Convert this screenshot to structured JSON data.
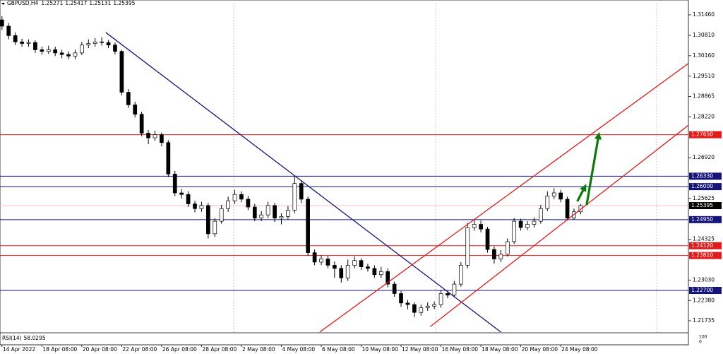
{
  "chart_data": {
    "type": "candlestick",
    "title": "GBPUSD,H4",
    "ohlc": [
      1.25271,
      1.25417,
      1.25131,
      1.25395
    ],
    "open": [
      1.313,
      1.311,
      1.308,
      1.306,
      1.3055,
      1.3058,
      1.3035,
      1.303,
      1.3035,
      1.3025,
      1.302,
      1.3015,
      1.3025,
      1.305,
      1.3055,
      1.306,
      1.3058,
      1.305,
      1.303,
      1.29,
      1.286,
      1.283,
      1.277,
      1.2755,
      1.2765,
      1.274,
      1.264,
      1.258,
      1.2575,
      1.2545,
      1.253,
      1.254,
      1.245,
      1.249,
      1.253,
      1.2555,
      1.2575,
      1.256,
      1.2535,
      1.25,
      1.251,
      1.254,
      1.25,
      1.2505,
      1.2525,
      1.261,
      1.256,
      1.239,
      1.236,
      1.237,
      1.235,
      1.234,
      1.231,
      1.235,
      1.2365,
      1.2345,
      1.234,
      1.232,
      1.233,
      1.229,
      1.226,
      1.223,
      1.2225,
      1.22,
      1.2215,
      1.222,
      1.2225,
      1.226,
      1.2255,
      1.229,
      1.235,
      1.247,
      1.248,
      1.2465,
      1.24,
      1.237,
      1.2385,
      1.2425,
      1.249,
      1.247,
      1.248,
      1.249,
      1.253,
      1.257,
      1.258,
      1.256,
      1.25,
      1.252
    ],
    "high": [
      1.3142,
      1.312,
      1.309,
      1.307,
      1.3068,
      1.3065,
      1.3045,
      1.3048,
      1.3045,
      1.3035,
      1.303,
      1.3035,
      1.306,
      1.3068,
      1.3072,
      1.3075,
      1.3066,
      1.3058,
      1.3035,
      1.291,
      1.287,
      1.2838,
      1.278,
      1.2778,
      1.2772,
      1.2748,
      1.265,
      1.2592,
      1.2585,
      1.2555,
      1.2552,
      1.2548,
      1.25,
      1.2542,
      1.2568,
      1.259,
      1.2585,
      1.257,
      1.2545,
      1.2522,
      1.2552,
      1.2548,
      1.2515,
      1.2538,
      1.2635,
      1.262,
      1.2568,
      1.24,
      1.2382,
      1.238,
      1.2362,
      1.235,
      1.2368,
      1.2378,
      1.2372,
      1.2355,
      1.235,
      1.2345,
      1.234,
      1.2298,
      1.2268,
      1.224,
      1.2232,
      1.2225,
      1.2232,
      1.2235,
      1.2272,
      1.2268,
      1.23,
      1.236,
      1.2485,
      1.2495,
      1.2492,
      1.2472,
      1.241,
      1.2398,
      1.2435,
      1.25,
      1.2498,
      1.249,
      1.2502,
      1.2542,
      1.2585,
      1.2595,
      1.259,
      1.2568,
      1.253,
      1.2545
    ],
    "low": [
      1.3098,
      1.3068,
      1.305,
      1.3045,
      1.3045,
      1.3025,
      1.302,
      1.3022,
      1.3015,
      1.3008,
      1.3005,
      1.3005,
      1.3018,
      1.304,
      1.3045,
      1.3048,
      1.304,
      1.302,
      1.289,
      1.285,
      1.282,
      1.276,
      1.2735,
      1.2745,
      1.2728,
      1.263,
      1.257,
      1.2562,
      1.2535,
      1.2518,
      1.252,
      1.2435,
      1.244,
      1.2482,
      1.252,
      1.2545,
      1.255,
      1.2525,
      1.249,
      1.249,
      1.25,
      1.2488,
      1.248,
      1.2495,
      1.2515,
      1.2548,
      1.238,
      1.235,
      1.235,
      1.234,
      1.231,
      1.2295,
      1.23,
      1.234,
      1.2335,
      1.233,
      1.231,
      1.231,
      1.228,
      1.225,
      1.2218,
      1.221,
      1.2185,
      1.219,
      1.2205,
      1.221,
      1.2215,
      1.2245,
      1.2248,
      1.2282,
      1.234,
      1.246,
      1.2455,
      1.239,
      1.2355,
      1.236,
      1.2378,
      1.2418,
      1.246,
      1.2462,
      1.247,
      1.2482,
      1.2522,
      1.256,
      1.255,
      1.2492,
      1.2495,
      1.2512
    ],
    "close": [
      1.311,
      1.308,
      1.306,
      1.3055,
      1.3058,
      1.3035,
      1.303,
      1.3035,
      1.3025,
      1.302,
      1.3015,
      1.3025,
      1.305,
      1.3055,
      1.306,
      1.3058,
      1.305,
      1.303,
      1.29,
      1.286,
      1.283,
      1.277,
      1.2755,
      1.2765,
      1.274,
      1.264,
      1.258,
      1.2575,
      1.2545,
      1.253,
      1.254,
      1.245,
      1.249,
      1.253,
      1.2555,
      1.2575,
      1.256,
      1.2535,
      1.25,
      1.251,
      1.254,
      1.25,
      1.2505,
      1.2525,
      1.261,
      1.256,
      1.239,
      1.236,
      1.237,
      1.235,
      1.234,
      1.231,
      1.235,
      1.2365,
      1.2345,
      1.234,
      1.232,
      1.233,
      1.229,
      1.226,
      1.223,
      1.2225,
      1.22,
      1.2215,
      1.222,
      1.2225,
      1.226,
      1.2255,
      1.229,
      1.235,
      1.247,
      1.248,
      1.2465,
      1.24,
      1.237,
      1.2385,
      1.2425,
      1.249,
      1.247,
      1.248,
      1.249,
      1.253,
      1.257,
      1.258,
      1.256,
      1.25,
      1.252,
      1.25395
    ],
    "xlim": [
      -0.3,
      103.2
    ],
    "ylim": [
      1.21375,
      1.31932
    ],
    "xticks": [
      {
        "value": 0,
        "label": "14 Apr 2022"
      },
      {
        "value": 6,
        "label": "18 Apr 08:00"
      },
      {
        "value": 12,
        "label": "20 Apr 08:00"
      },
      {
        "value": 18,
        "label": "22 Apr 08:00"
      },
      {
        "value": 24,
        "label": "26 Apr 08:00"
      },
      {
        "value": 30,
        "label": "28 Apr 08:00"
      },
      {
        "value": 36,
        "label": "2 May 08:00"
      },
      {
        "value": 42,
        "label": "4 May 08:00"
      },
      {
        "value": 48,
        "label": "6 May 08:00"
      },
      {
        "value": 54,
        "label": "10 May 08:00"
      },
      {
        "value": 60,
        "label": "12 May 08:00"
      },
      {
        "value": 66,
        "label": "16 May 08:00"
      },
      {
        "value": 72,
        "label": "18 May 08:00"
      },
      {
        "value": 78,
        "label": "20 May 08:00"
      },
      {
        "value": 84,
        "label": "24 May 08:00"
      }
    ],
    "yticks": [
      {
        "value": 1.3146,
        "label": "1.31460"
      },
      {
        "value": 1.3081,
        "label": "1.30810"
      },
      {
        "value": 1.3016,
        "label": "1.30160"
      },
      {
        "value": 1.2951,
        "label": "1.29510"
      },
      1.28865,
      {
        "value": 1.2822,
        "label": "1.28220"
      },
      {
        "value": 1.2692,
        "label": "1.26920"
      },
      1.25625,
      1.24325,
      {
        "value": 1.2303,
        "label": "1.23030"
      },
      {
        "value": 1.2238,
        "label": "1.22380"
      },
      1.21735
    ],
    "levels": [
      {
        "value": 1.2765,
        "label": "1.27650",
        "color": "#e21a1a"
      },
      {
        "value": 1.2633,
        "label": "1.26330",
        "color": "#14147a"
      },
      {
        "value": 1.26,
        "label": "1.26000",
        "color": "#14147a"
      },
      {
        "value": 1.25395,
        "color": "#000000",
        "line_color": "#f3c2c2"
      },
      {
        "value": 1.2495,
        "label": "1.24950",
        "color": "#14147a"
      },
      {
        "value": 1.2412,
        "label": "1.24120",
        "color": "#e21a1a"
      },
      {
        "value": 1.2381,
        "label": "1.23810",
        "color": "#e21a1a"
      },
      {
        "value": 1.227,
        "label": "1.22700",
        "color": "#14147a"
      }
    ],
    "trendlines": [
      {
        "x": [
          15.6,
          75.6
        ],
        "y": [
          1.309,
          1.2128
        ],
        "color": "#14147a"
      },
      {
        "x": [
          47.8,
          103.5
        ],
        "y": [
          1.2138,
          1.2996
        ],
        "color": "#e21a1a"
      },
      {
        "x": [
          64.4,
          103.5
        ],
        "y": [
          1.2155,
          1.28
        ],
        "color": "#e21a1a"
      }
    ],
    "arrows": [
      {
        "x": [
          86.5,
          87.6
        ],
        "y": [
          1.2553,
          1.2598
        ],
        "color": "#0b7a0b"
      },
      {
        "x": [
          87.9,
          89.7
        ],
        "y": [
          1.2542,
          1.2762
        ],
        "color": "#0b7a0b"
      }
    ],
    "indicator": {
      "label": "RSI(14)",
      "value": 58.0295,
      "ticks": [
        100,
        0
      ]
    }
  }
}
